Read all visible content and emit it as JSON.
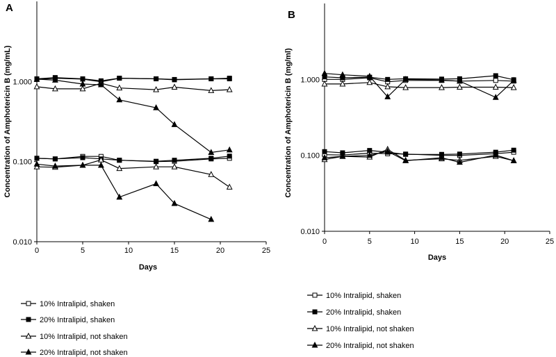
{
  "chart_data": [
    {
      "panel": "A",
      "type": "line",
      "xlabel": "Days",
      "ylabel": "Concentration of Amphotericin B (mg/mL)",
      "xlim": [
        0,
        25
      ],
      "ylim": [
        0.01,
        10
      ],
      "yscale": "log",
      "x_ticks": [
        "0",
        "5",
        "10",
        "15",
        "20",
        "25"
      ],
      "y_ticks": [
        "0.010",
        "0.100",
        "1.000"
      ],
      "series": [
        {
          "name": "10% Intralipid, shaken",
          "marker": "square-open",
          "x": [
            0,
            2,
            5,
            7,
            9,
            13,
            15,
            19,
            21
          ],
          "y": [
            1.06,
            1.1,
            1.07,
            0.99,
            1.1,
            1.08,
            1.06,
            1.08,
            1.08
          ]
        },
        {
          "name": "20% Intralipid, shaken",
          "marker": "square-filled",
          "x": [
            0,
            2,
            5,
            7,
            9,
            13,
            15,
            19,
            21
          ],
          "y": [
            1.08,
            1.12,
            1.08,
            1.02,
            1.1,
            1.08,
            1.05,
            1.08,
            1.1
          ]
        },
        {
          "name": "10% Intralipid, not shaken",
          "marker": "triangle-open",
          "x": [
            0,
            2,
            5,
            7,
            9,
            13,
            15,
            19,
            21
          ],
          "y": [
            0.86,
            0.81,
            0.81,
            0.95,
            0.83,
            0.79,
            0.85,
            0.77,
            0.79
          ]
        },
        {
          "name": "20% Intralipid, not shaken",
          "marker": "triangle-filled",
          "x": [
            0,
            2,
            5,
            7,
            9,
            13,
            15,
            19,
            21
          ],
          "y": [
            1.07,
            1.04,
            0.93,
            0.91,
            0.59,
            0.47,
            0.29,
            0.13,
            0.14
          ]
        },
        {
          "name": "10% Intralipid, shaken",
          "marker": "square-open",
          "x": [
            0,
            2,
            5,
            7,
            9,
            13,
            15,
            19,
            21
          ],
          "y": [
            0.11,
            0.108,
            0.116,
            0.116,
            0.104,
            0.1,
            0.101,
            0.108,
            0.11
          ]
        },
        {
          "name": "20% Intralipid, shaken",
          "marker": "square-filled",
          "x": [
            0,
            2,
            5,
            7,
            9,
            13,
            15,
            19,
            21
          ],
          "y": [
            0.11,
            0.108,
            0.112,
            0.108,
            0.104,
            0.101,
            0.104,
            0.11,
            0.117
          ]
        },
        {
          "name": "10% Intralipid, not shaken",
          "marker": "triangle-open",
          "x": [
            0,
            2,
            5,
            7,
            9,
            13,
            15,
            19,
            21
          ],
          "y": [
            0.086,
            0.085,
            0.09,
            0.105,
            0.082,
            0.086,
            0.086,
            0.069,
            0.048
          ]
        },
        {
          "name": "20% Intralipid, not shaken",
          "marker": "triangle-filled",
          "x": [
            0,
            2,
            5,
            7,
            9,
            13,
            15,
            19
          ],
          "y": [
            0.093,
            0.088,
            0.09,
            0.09,
            0.036,
            0.053,
            0.03,
            0.019
          ]
        }
      ]
    },
    {
      "panel": "B",
      "type": "line",
      "xlabel": "Days",
      "ylabel": "Concentration of Amphotericin B (mg/ml)",
      "xlim": [
        0,
        25
      ],
      "ylim": [
        0.01,
        10
      ],
      "yscale": "log",
      "x_ticks": [
        "0",
        "5",
        "10",
        "15",
        "20",
        "25"
      ],
      "y_ticks": [
        "0.010",
        "0.100",
        "1.000"
      ],
      "series": [
        {
          "name": "10% Intralipid, shaken",
          "marker": "square-open",
          "x": [
            0,
            2,
            5,
            7,
            9,
            13,
            15,
            19,
            21
          ],
          "y": [
            1.0,
            1.0,
            1.05,
            0.93,
            0.97,
            0.97,
            0.95,
            0.97,
            0.95
          ]
        },
        {
          "name": "20% Intralipid, shaken",
          "marker": "square-filled",
          "x": [
            0,
            2,
            5,
            7,
            9,
            13,
            15,
            19,
            21
          ],
          "y": [
            1.08,
            1.05,
            1.07,
            1.0,
            1.02,
            1.01,
            1.02,
            1.12,
            0.99
          ]
        },
        {
          "name": "10% Intralipid, not shaken",
          "marker": "triangle-open",
          "x": [
            0,
            2,
            5,
            7,
            9,
            13,
            15,
            19,
            21
          ],
          "y": [
            0.87,
            0.87,
            0.91,
            0.8,
            0.78,
            0.78,
            0.79,
            0.79,
            0.78
          ]
        },
        {
          "name": "20% Intralipid, not shaken",
          "marker": "triangle-filled",
          "x": [
            0,
            2,
            5,
            7,
            9,
            13,
            15,
            19,
            21
          ],
          "y": [
            1.2,
            1.15,
            1.1,
            0.59,
            1.0,
            0.98,
            0.95,
            0.58,
            0.97
          ]
        },
        {
          "name": "10% Intralipid, shaken",
          "marker": "square-open",
          "x": [
            0,
            2,
            5,
            7,
            9,
            13,
            15,
            19,
            21
          ],
          "y": [
            0.102,
            0.101,
            0.107,
            0.105,
            0.104,
            0.1,
            0.1,
            0.105,
            0.11
          ]
        },
        {
          "name": "20% Intralipid, shaken",
          "marker": "square-filled",
          "x": [
            0,
            2,
            5,
            7,
            9,
            13,
            15,
            19,
            21
          ],
          "y": [
            0.112,
            0.108,
            0.116,
            0.11,
            0.103,
            0.103,
            0.104,
            0.11,
            0.117
          ]
        },
        {
          "name": "10% Intralipid, not shaken",
          "marker": "triangle-open",
          "x": [
            0,
            2,
            5,
            7,
            9,
            13,
            15,
            19,
            21
          ],
          "y": [
            0.088,
            0.097,
            0.095,
            0.12,
            0.086,
            0.09,
            0.086,
            0.097,
            0.085
          ]
        },
        {
          "name": "20% Intralipid, not shaken",
          "marker": "triangle-filled",
          "x": [
            0,
            2,
            5,
            7,
            9,
            13,
            15,
            19,
            21
          ],
          "y": [
            0.093,
            0.097,
            0.1,
            0.113,
            0.085,
            0.093,
            0.081,
            0.101,
            0.085
          ]
        }
      ]
    }
  ],
  "legend": [
    {
      "label": "10% Intralipid, shaken",
      "marker": "square-open"
    },
    {
      "label": "20% Intralipid, shaken",
      "marker": "square-filled"
    },
    {
      "label": "10% Intralipid, not shaken",
      "marker": "triangle-open"
    },
    {
      "label": "20% Intralipid, not shaken",
      "marker": "triangle-filled"
    }
  ]
}
